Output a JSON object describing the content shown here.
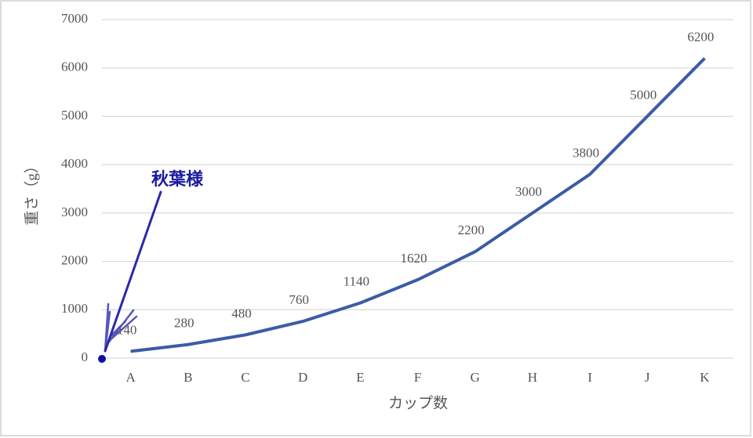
{
  "chart_data": {
    "type": "line",
    "categories": [
      "A",
      "B",
      "C",
      "D",
      "E",
      "F",
      "G",
      "H",
      "I",
      "J",
      "K"
    ],
    "values": [
      140,
      280,
      480,
      760,
      1140,
      1620,
      2200,
      3000,
      3800,
      5000,
      6200
    ],
    "color": "#3b5ca6",
    "ylim": [
      0,
      7000
    ],
    "yticks": [
      0,
      1000,
      2000,
      3000,
      4000,
      5000,
      6000,
      7000
    ],
    "grid": true,
    "xlabel": "カップ数",
    "ylabel": "重さ（g）",
    "annotation": "秋葉様"
  }
}
